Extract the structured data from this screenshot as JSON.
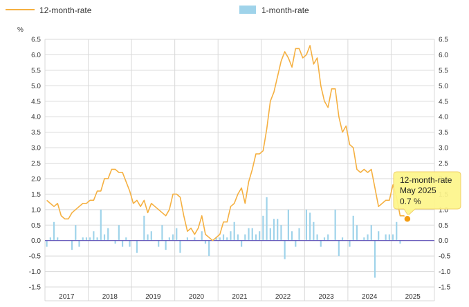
{
  "legend": {
    "annual_label": "12-month-rate",
    "monthly_label": "1-month-rate"
  },
  "axis": {
    "unit_label": "%"
  },
  "tooltip": {
    "line1": "12-month-rate",
    "line2": "May 2025",
    "line3": "0.7 %"
  },
  "colors": {
    "line": "#f5b041",
    "bar": "#9fd3ea",
    "zero_line": "#5b4db8",
    "grid": "#d9d9d9",
    "tooltip_bg": "#fdf58a",
    "tooltip_border": "#f0d06a",
    "marker": "#f39c12"
  },
  "chart_data": {
    "type": "line+bar",
    "ylim": [
      -1.5,
      6.5
    ],
    "yticks": [
      -1.5,
      -1.0,
      -0.5,
      0.0,
      0.5,
      1.0,
      1.5,
      2.0,
      2.5,
      3.0,
      3.5,
      4.0,
      4.5,
      5.0,
      5.5,
      6.0,
      6.5
    ],
    "ytick_labels": [
      "-1.5",
      "-1.0",
      "-0.5",
      "0.0",
      "0.5",
      "1.0",
      "1.5",
      "2.0",
      "2.5",
      "3.0",
      "3.5",
      "4.0",
      "4.5",
      "5.0",
      "5.5",
      "6.0",
      "6.5"
    ],
    "year_labels": [
      "2017",
      "2018",
      "2019",
      "2020",
      "2021",
      "2022",
      "2023",
      "2024",
      "2025"
    ],
    "grid": true,
    "legend_position": "top",
    "start": "2017-01",
    "end": "2025-05",
    "series": [
      {
        "name": "12-month-rate",
        "kind": "line",
        "values": [
          1.3,
          1.2,
          1.1,
          1.2,
          0.8,
          0.7,
          0.7,
          0.9,
          1.0,
          1.1,
          1.2,
          1.2,
          1.3,
          1.3,
          1.6,
          1.6,
          2.0,
          2.0,
          2.3,
          2.3,
          2.2,
          2.2,
          1.9,
          1.6,
          1.2,
          1.3,
          1.1,
          1.3,
          0.9,
          1.2,
          1.1,
          1.0,
          0.9,
          0.8,
          1.0,
          1.5,
          1.5,
          1.4,
          0.8,
          0.3,
          0.4,
          0.2,
          0.4,
          0.8,
          0.2,
          0.1,
          0.0,
          0.1,
          0.2,
          0.6,
          0.6,
          1.1,
          1.2,
          1.5,
          1.7,
          1.2,
          1.9,
          2.3,
          2.8,
          2.8,
          2.9,
          3.6,
          4.5,
          4.8,
          5.3,
          5.8,
          6.1,
          5.9,
          5.6,
          6.2,
          6.2,
          5.9,
          6.0,
          6.3,
          5.7,
          5.9,
          5.0,
          4.5,
          4.3,
          4.9,
          4.9,
          4.0,
          3.5,
          3.7,
          3.1,
          3.0,
          2.3,
          2.2,
          2.3,
          2.2,
          2.3,
          1.7,
          1.1,
          1.2,
          1.3,
          1.3,
          1.8,
          1.4,
          0.8,
          0.8,
          0.7
        ]
      },
      {
        "name": "1-month-rate",
        "kind": "bar",
        "values": [
          -0.2,
          0.1,
          0.6,
          0.1,
          0.0,
          0.0,
          0.0,
          -0.3,
          0.5,
          -0.2,
          0.1,
          0.1,
          0.1,
          0.3,
          0.1,
          1.0,
          0.2,
          0.4,
          0.0,
          -0.1,
          0.5,
          -0.2,
          0.1,
          -0.2,
          0.0,
          -0.4,
          0.0,
          0.8,
          0.2,
          0.3,
          0.0,
          -0.2,
          0.5,
          -0.3,
          0.1,
          0.2,
          0.4,
          -0.4,
          0.0,
          0.1,
          0.0,
          0.1,
          0.0,
          0.3,
          -0.1,
          -0.5,
          0.0,
          0.1,
          0.1,
          0.2,
          0.1,
          0.3,
          0.6,
          0.2,
          -0.2,
          0.2,
          0.4,
          0.4,
          0.2,
          0.3,
          0.8,
          1.4,
          0.4,
          0.7,
          0.7,
          0.5,
          -0.6,
          1.0,
          0.3,
          -0.2,
          0.4,
          0.0,
          1.0,
          0.9,
          0.6,
          0.2,
          -0.2,
          0.1,
          0.2,
          0.0,
          1.0,
          -0.5,
          0.1,
          0.0,
          -0.2,
          0.8,
          0.5,
          0.0,
          0.1,
          0.2,
          0.5,
          -1.2,
          0.3,
          0.0,
          0.2,
          0.2,
          0.2,
          0.6,
          -0.1,
          0.0,
          0.0
        ]
      }
    ],
    "highlight": {
      "date": "2025-05",
      "value": 0.7
    }
  }
}
